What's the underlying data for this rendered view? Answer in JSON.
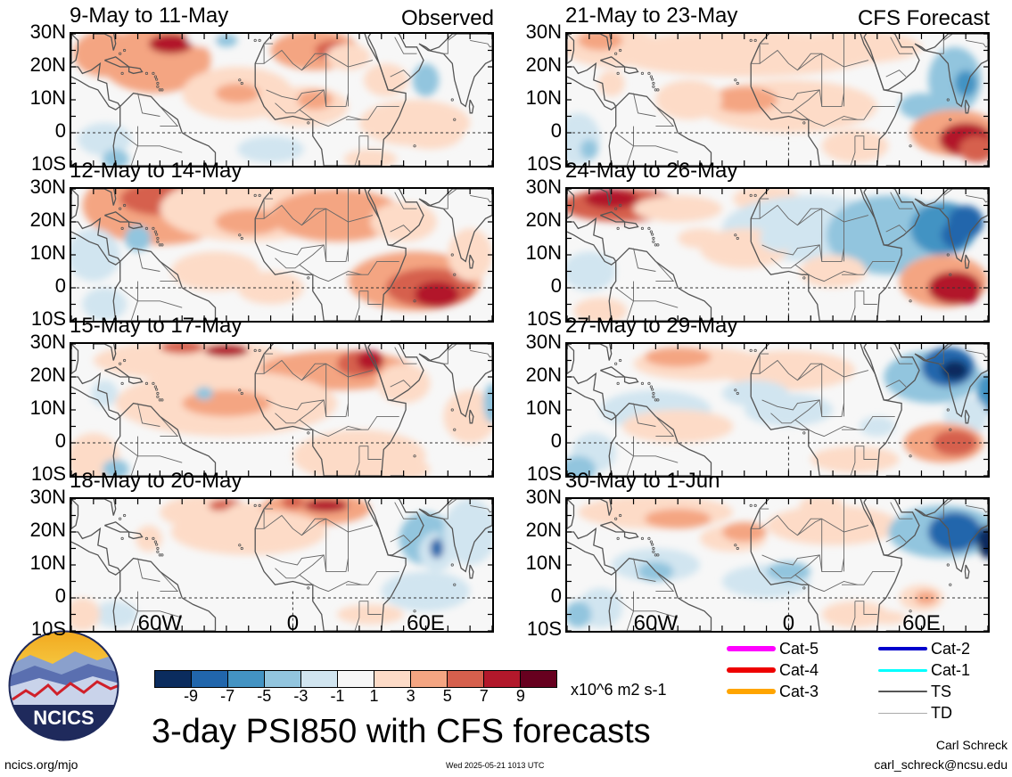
{
  "panels": [
    {
      "title": "9-May to 11-May",
      "tag": "Observed"
    },
    {
      "title": "12-May to 14-May",
      "tag": ""
    },
    {
      "title": "15-May to 17-May",
      "tag": ""
    },
    {
      "title": "18-May to 20-May",
      "tag": ""
    },
    {
      "title": "21-May to 23-May",
      "tag": "CFS Forecast"
    },
    {
      "title": "24-May to 26-May",
      "tag": ""
    },
    {
      "title": "27-May to 29-May",
      "tag": ""
    },
    {
      "title": "30-May to 1-Jun",
      "tag": ""
    }
  ],
  "lat_labels": [
    "30N",
    "20N",
    "10N",
    "0",
    "10S"
  ],
  "lon_labels": [
    "60W",
    "0",
    "60E"
  ],
  "colorbar": {
    "colors": [
      "#0b2c5e",
      "#2166ac",
      "#4393c3",
      "#92c5de",
      "#d1e5f0",
      "#f7f7f7",
      "#fddbc7",
      "#f4a582",
      "#d6604d",
      "#b2182b",
      "#67001f"
    ],
    "ticks": [
      "-9",
      "-7",
      "-5",
      "-3",
      "-1",
      "1",
      "3",
      "5",
      "7",
      "9"
    ],
    "units": "x10^6 m2 s-1"
  },
  "title": "3-day PSI850 with CFS forecasts",
  "legend": [
    {
      "label": "Cat-5",
      "color": "#ff00ff",
      "weight": 6
    },
    {
      "label": "Cat-4",
      "color": "#ee0000",
      "weight": 6
    },
    {
      "label": "Cat-3",
      "color": "#ffa500",
      "weight": 6
    },
    {
      "label": "Cat-2",
      "color": "#0000cc",
      "weight": 4
    },
    {
      "label": "Cat-1",
      "color": "#00ffff",
      "weight": 3
    },
    {
      "label": "TS",
      "color": "#555555",
      "weight": 2
    },
    {
      "label": "TD",
      "color": "#aaaaaa",
      "weight": 1
    }
  ],
  "logo_text": "NCICS",
  "footer": {
    "url": "ncics.org/mjo",
    "timestamp": "Wed 2025-05-21 1013 UTC",
    "author": "Carl Schreck",
    "email": "carl_schreck@ncsu.edu"
  }
}
